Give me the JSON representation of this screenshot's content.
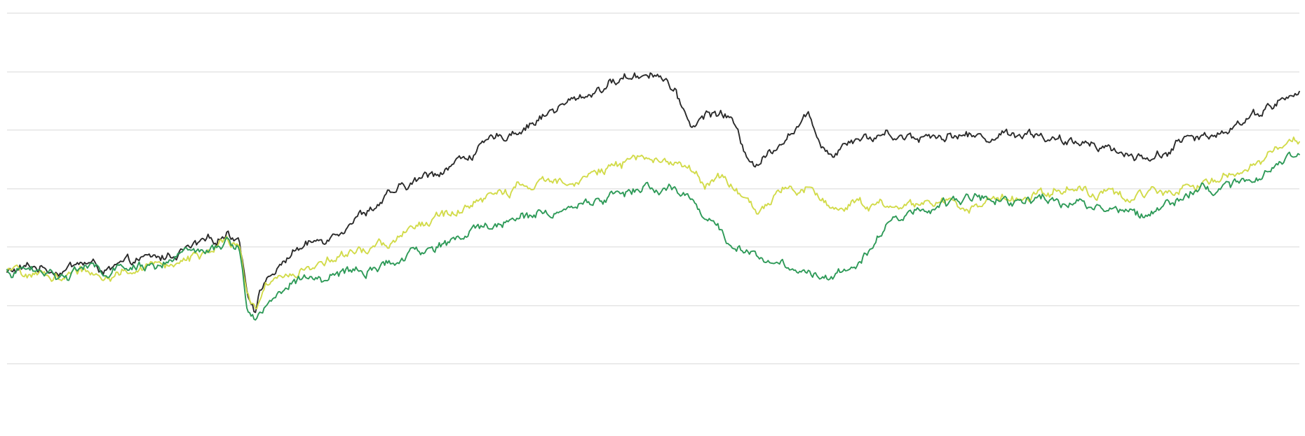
{
  "chart_data": {
    "type": "line",
    "title": "",
    "xlabel": "",
    "ylabel": "",
    "grid": true,
    "gridlines": [
      0,
      1,
      2,
      3,
      4,
      5,
      6
    ],
    "ylim": [
      0,
      6
    ],
    "xlim": [
      0,
      100
    ],
    "legend": "none",
    "series": [
      {
        "color": "#2b2b2b",
        "x": [
          0,
          2,
          4,
          6,
          8,
          10,
          12,
          14,
          16,
          17,
          18,
          18.6,
          19.2,
          20,
          21,
          22,
          24,
          26,
          28,
          30,
          32,
          34,
          36,
          38,
          40,
          42,
          44,
          46,
          48,
          50,
          51,
          52,
          53,
          54,
          55,
          56,
          57,
          58,
          60,
          62,
          63,
          64,
          65,
          66,
          67,
          68,
          70,
          72,
          74,
          76,
          78,
          80,
          82,
          84,
          86,
          88,
          90,
          91,
          92,
          94,
          96,
          98,
          100
        ],
        "y": [
          1.55,
          1.65,
          1.6,
          1.72,
          1.58,
          1.75,
          1.8,
          1.95,
          2.08,
          2.25,
          2.15,
          1.2,
          0.98,
          1.45,
          1.6,
          1.9,
          2.08,
          2.35,
          2.65,
          2.9,
          3.15,
          3.35,
          3.6,
          3.85,
          4.05,
          4.3,
          4.5,
          4.72,
          4.9,
          5.0,
          4.85,
          4.45,
          4.05,
          4.25,
          4.3,
          4.2,
          3.65,
          3.4,
          3.85,
          4.2,
          3.8,
          3.58,
          3.85,
          3.9,
          3.85,
          3.95,
          3.87,
          3.92,
          3.9,
          3.87,
          3.96,
          3.92,
          3.72,
          3.82,
          3.62,
          3.5,
          3.65,
          3.85,
          3.78,
          4.0,
          4.2,
          4.45,
          4.6
        ]
      },
      {
        "color": "#d2db4a",
        "x": [
          0,
          2,
          4,
          6,
          8,
          10,
          12,
          14,
          16,
          17,
          18,
          18.6,
          19.2,
          20,
          21,
          22,
          24,
          26,
          28,
          30,
          32,
          34,
          36,
          38,
          40,
          42,
          44,
          46,
          48,
          50,
          51,
          52,
          53,
          54,
          55,
          56,
          57,
          58,
          60,
          62,
          63,
          64,
          65,
          66,
          67,
          68,
          70,
          72,
          74,
          76,
          78,
          80,
          82,
          84,
          86,
          88,
          90,
          91,
          92,
          94,
          96,
          98,
          100
        ],
        "y": [
          1.55,
          1.52,
          1.48,
          1.58,
          1.5,
          1.62,
          1.68,
          1.8,
          1.9,
          2.05,
          1.95,
          1.1,
          0.95,
          1.32,
          1.42,
          1.55,
          1.7,
          1.82,
          1.95,
          2.12,
          2.35,
          2.55,
          2.72,
          2.9,
          3.02,
          3.1,
          3.2,
          3.3,
          3.4,
          3.55,
          3.5,
          3.4,
          3.3,
          3.1,
          3.2,
          3.05,
          2.75,
          2.6,
          2.9,
          3.05,
          2.82,
          2.65,
          2.7,
          2.78,
          2.7,
          2.65,
          2.7,
          2.8,
          2.7,
          2.75,
          2.85,
          2.95,
          3.0,
          2.9,
          2.85,
          2.9,
          2.95,
          3.1,
          3.05,
          3.2,
          3.35,
          3.6,
          3.85
        ]
      },
      {
        "color": "#2e9a58",
        "x": [
          0,
          2,
          4,
          6,
          8,
          10,
          12,
          14,
          16,
          17,
          18,
          18.6,
          19.2,
          20,
          21,
          22,
          24,
          26,
          28,
          30,
          32,
          34,
          36,
          38,
          40,
          42,
          44,
          46,
          48,
          50,
          51,
          52,
          53,
          54,
          55,
          56,
          57,
          58,
          60,
          62,
          63,
          64,
          65,
          66,
          67,
          68,
          70,
          72,
          74,
          76,
          78,
          80,
          82,
          84,
          86,
          88,
          90,
          91,
          92,
          94,
          96,
          98,
          100
        ],
        "y": [
          1.55,
          1.6,
          1.5,
          1.65,
          1.52,
          1.65,
          1.72,
          1.85,
          1.95,
          2.05,
          1.95,
          0.95,
          0.75,
          1.05,
          1.2,
          1.35,
          1.45,
          1.5,
          1.6,
          1.7,
          1.9,
          2.05,
          2.25,
          2.4,
          2.5,
          2.6,
          2.7,
          2.8,
          2.95,
          3.0,
          2.95,
          2.9,
          2.85,
          2.5,
          2.3,
          2.05,
          1.95,
          1.85,
          1.7,
          1.6,
          1.5,
          1.55,
          1.65,
          1.8,
          2.05,
          2.35,
          2.55,
          2.7,
          2.8,
          2.85,
          2.8,
          2.85,
          2.75,
          2.72,
          2.6,
          2.55,
          2.8,
          2.9,
          2.95,
          3.0,
          3.1,
          3.35,
          3.6
        ]
      }
    ]
  }
}
